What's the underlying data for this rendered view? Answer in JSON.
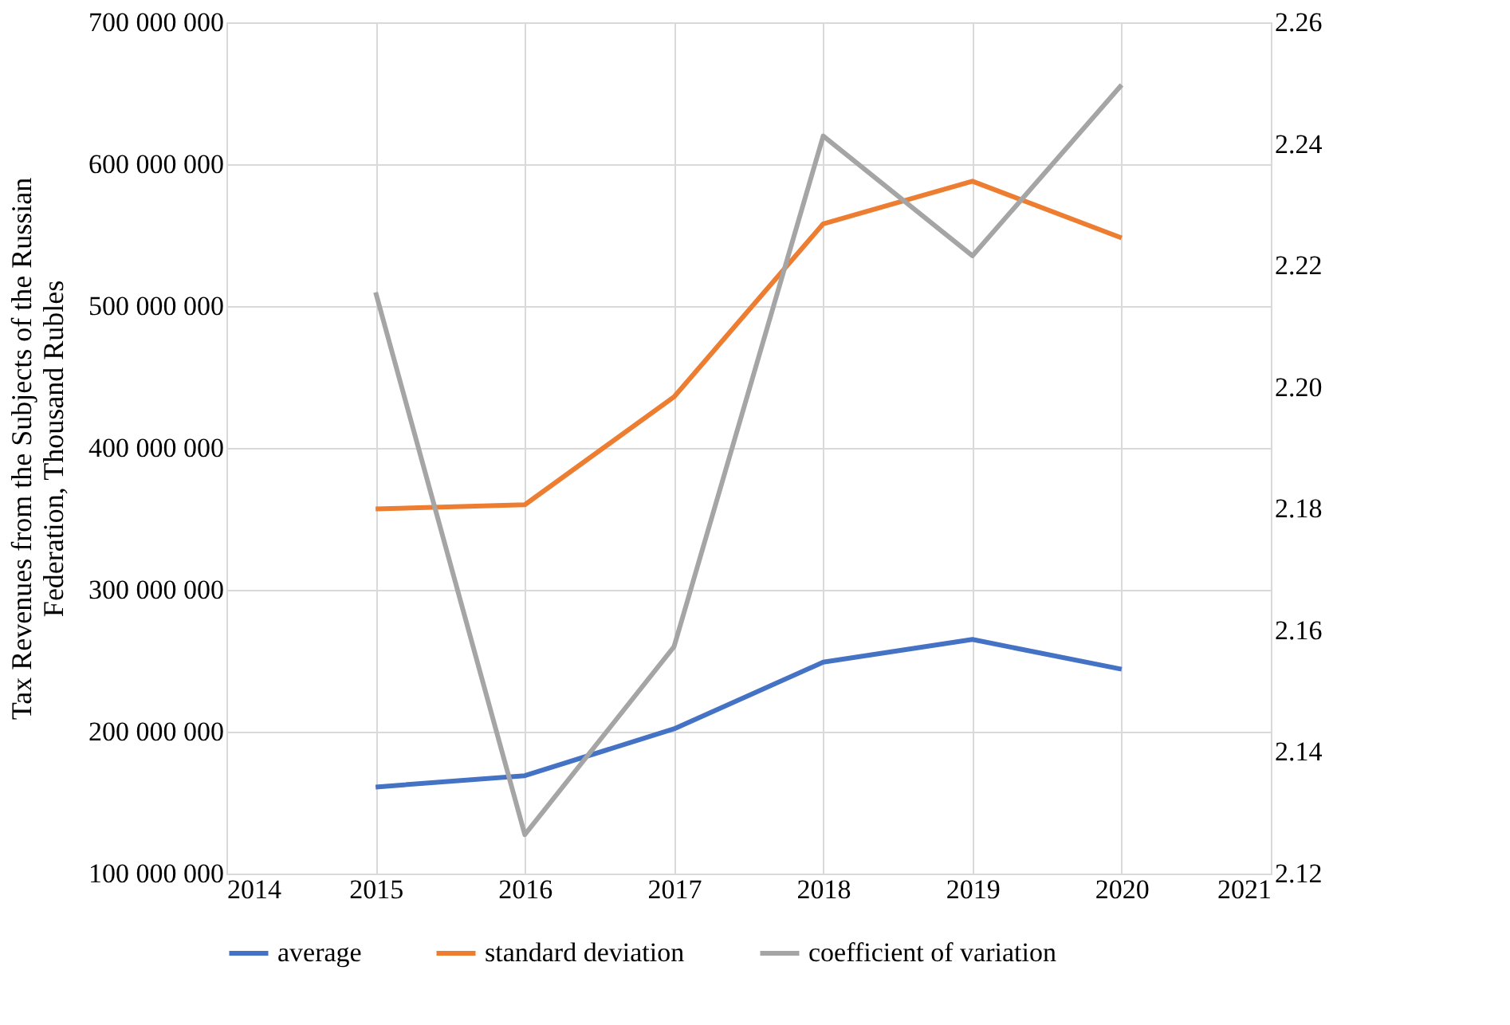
{
  "chart_data": {
    "type": "line",
    "ylabel": "Tax Revenues from the Subjects of the Russian\nFederation, Thousand Rubles",
    "x": [
      2015,
      2016,
      2017,
      2018,
      2019,
      2020
    ],
    "xlim": [
      2014,
      2021
    ],
    "xticks": [
      2014,
      2015,
      2016,
      2017,
      2018,
      2019,
      2020,
      2021
    ],
    "ylim": [
      100000000,
      700000000
    ],
    "yticks": [
      {
        "value": 100000000,
        "label": "100 000 000"
      },
      {
        "value": 200000000,
        "label": "200 000 000"
      },
      {
        "value": 300000000,
        "label": "300 000 000"
      },
      {
        "value": 400000000,
        "label": "400 000 000"
      },
      {
        "value": 500000000,
        "label": "500 000 000"
      },
      {
        "value": 600000000,
        "label": "600 000 000"
      },
      {
        "value": 700000000,
        "label": "700 000 000"
      }
    ],
    "y2lim": [
      2.12,
      2.26
    ],
    "y2ticks": [
      2.12,
      2.14,
      2.16,
      2.18,
      {
        "value": 2.2,
        "label": "2.20"
      },
      2.22,
      2.24,
      2.26
    ],
    "series": [
      {
        "name": "average",
        "color": "#4472c4",
        "values": [
          161000000,
          169000000,
          202000000,
          249000000,
          265000000,
          244000000
        ]
      },
      {
        "name": "standard deviation",
        "color": "#ed7d31",
        "values": [
          357000000,
          360000000,
          436000000,
          558000000,
          588000000,
          548000000
        ]
      },
      {
        "name": "coefficient of variation",
        "color": "#a5a5a5",
        "axis": "y2",
        "values": [
          2.2156,
          2.1264,
          2.1573,
          2.2413,
          2.2216,
          2.2497
        ]
      }
    ],
    "grid": true,
    "legend": "bottom",
    "marker": "none",
    "line_style": "solid"
  }
}
